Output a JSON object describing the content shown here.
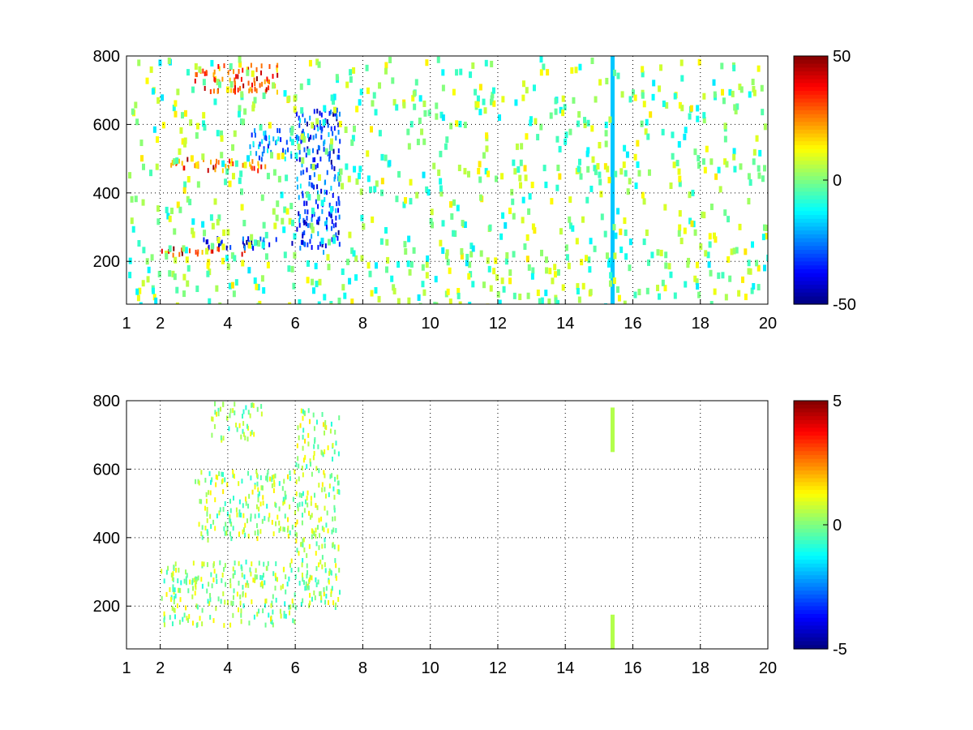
{
  "chart_data": [
    {
      "type": "heatmap",
      "x_ticks": [
        "1",
        "2",
        "4",
        "6",
        "8",
        "10",
        "12",
        "14",
        "16",
        "18",
        "20"
      ],
      "x_tick_values": [
        1,
        2,
        4,
        6,
        8,
        10,
        12,
        14,
        16,
        18,
        20
      ],
      "y_ticks": [
        "200",
        "400",
        "600",
        "800"
      ],
      "y_tick_values": [
        200,
        400,
        600,
        800
      ],
      "xlim": [
        1,
        20
      ],
      "ylim": [
        75,
        800
      ],
      "grid": true,
      "colormap": "jet",
      "colorbar": {
        "clim": [
          -50,
          50
        ],
        "ticks": [
          "50",
          "0",
          "-50"
        ],
        "tick_values": [
          50,
          0,
          -50
        ]
      },
      "features": [
        {
          "kind": "band",
          "x": [
            1.9,
            4.6
          ],
          "y": [
            225,
            245
          ],
          "value": 42
        },
        {
          "kind": "band",
          "x": [
            3.2,
            6.0
          ],
          "y": [
            245,
            275
          ],
          "value": -45
        },
        {
          "kind": "band",
          "x": [
            2.3,
            5.2
          ],
          "y": [
            470,
            505
          ],
          "value": 38
        },
        {
          "kind": "band",
          "x": [
            4.6,
            5.9
          ],
          "y": [
            505,
            590
          ],
          "value": -30
        },
        {
          "kind": "band",
          "x": [
            3.0,
            5.5
          ],
          "y": [
            700,
            780
          ],
          "value": 40
        },
        {
          "kind": "band",
          "x": [
            6.0,
            7.3
          ],
          "y": [
            230,
            650
          ],
          "value": -40
        },
        {
          "kind": "stripe",
          "x": 15.4,
          "y": [
            75,
            800
          ],
          "value": -18
        }
      ]
    },
    {
      "type": "heatmap",
      "x_ticks": [
        "1",
        "2",
        "4",
        "6",
        "8",
        "10",
        "12",
        "14",
        "16",
        "18",
        "20"
      ],
      "x_tick_values": [
        1,
        2,
        4,
        6,
        8,
        10,
        12,
        14,
        16,
        18,
        20
      ],
      "y_ticks": [
        "200",
        "400",
        "600",
        "800"
      ],
      "y_tick_values": [
        200,
        400,
        600,
        800
      ],
      "xlim": [
        1,
        20
      ],
      "ylim": [
        75,
        800
      ],
      "grid": true,
      "colormap": "jet",
      "colorbar": {
        "clim": [
          -5,
          5
        ],
        "ticks": [
          "5",
          "0",
          "-5"
        ],
        "tick_values": [
          5,
          0,
          -5
        ]
      },
      "features": [
        {
          "kind": "region",
          "x": [
            2.0,
            6.0
          ],
          "y": [
            150,
            340
          ],
          "value": 0.3
        },
        {
          "kind": "region",
          "x": [
            3.0,
            6.0
          ],
          "y": [
            400,
            600
          ],
          "value": 0.3
        },
        {
          "kind": "region",
          "x": [
            3.5,
            5.0
          ],
          "y": [
            690,
            800
          ],
          "value": 0.3
        },
        {
          "kind": "region",
          "x": [
            6.0,
            7.3
          ],
          "y": [
            200,
            780
          ],
          "value": 0.3
        },
        {
          "kind": "stripe",
          "x": 15.4,
          "y": [
            75,
            175
          ],
          "value": 0.5
        },
        {
          "kind": "stripe",
          "x": 15.4,
          "y": [
            650,
            780
          ],
          "value": 0.5
        }
      ]
    }
  ]
}
